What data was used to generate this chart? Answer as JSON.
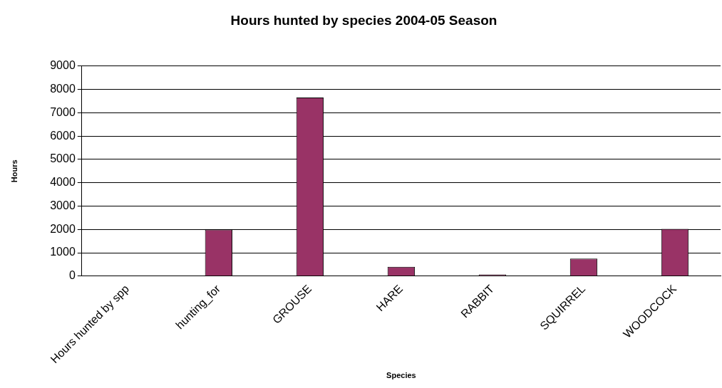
{
  "chart_data": {
    "type": "bar",
    "title": "Hours hunted by species 2004-05 Season",
    "xlabel": "Species",
    "ylabel": "Hours",
    "categories": [
      "Hours hunted by spp",
      "hunting_for",
      "GROUSE",
      "HARE",
      "RABBIT",
      "SQUIRREL",
      "WOODCOCK"
    ],
    "values": [
      null,
      1990,
      7650,
      400,
      70,
      750,
      2020
    ],
    "color": "#993366",
    "ylim": [
      0,
      9000
    ],
    "yticks": [
      0,
      1000,
      2000,
      3000,
      4000,
      5000,
      6000,
      7000,
      8000,
      9000
    ],
    "grid": "y"
  }
}
